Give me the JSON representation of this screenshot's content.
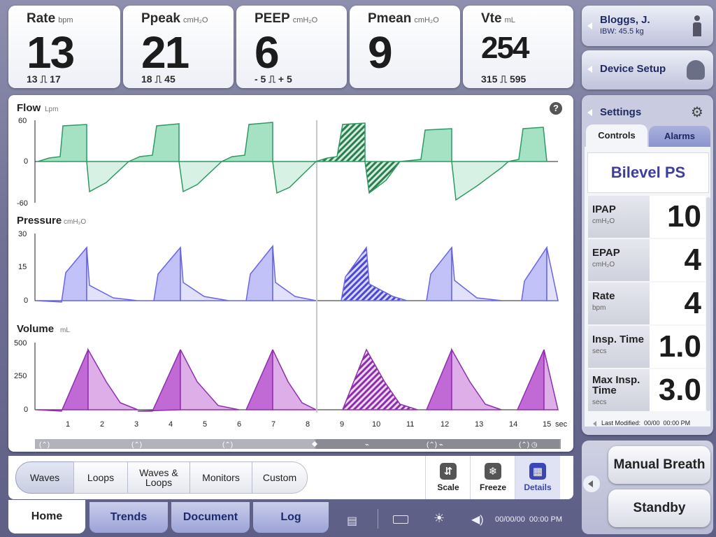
{
  "metrics": [
    {
      "label": "Rate",
      "unit": "bpm",
      "value": "13",
      "range": "13 ⎍ 17"
    },
    {
      "label": "Ppeak",
      "unit": "cmH₂O",
      "value": "21",
      "range": "18 ⎍ 45"
    },
    {
      "label": "PEEP",
      "unit": "cmH₂O",
      "value": "6",
      "range": "- 5 ⎍ + 5"
    },
    {
      "label": "Pmean",
      "unit": "cmH₂O",
      "value": "9",
      "range": ""
    },
    {
      "label": "Vte",
      "unit": "mL",
      "value": "254",
      "range": "315 ⎍ 595"
    }
  ],
  "waves": {
    "help_icon": "?",
    "flow": {
      "label": "Flow",
      "unit": "Lpm",
      "ticks": [
        "60",
        "0",
        "-60"
      ]
    },
    "pressure": {
      "label": "Pressure",
      "unit": "cmH₂O",
      "ticks": [
        "30",
        "15",
        "0"
      ]
    },
    "volume": {
      "label": "Volume",
      "unit": "mL",
      "ticks": [
        "500",
        "250",
        "0"
      ]
    },
    "x_ticks": [
      "1",
      "2",
      "3",
      "4",
      "5",
      "6",
      "7",
      "8",
      "9",
      "10",
      "11",
      "12",
      "13",
      "14",
      "15"
    ],
    "x_unit": "sec",
    "colors": {
      "flow": "#3fb878",
      "pressure": "#7b78ef",
      "volume": "#b04bc8"
    }
  },
  "view_tabs": {
    "waves": "Waves",
    "loops": "Loops",
    "waves_loops": "Waves & Loops",
    "monitors": "Monitors",
    "custom": "Custom"
  },
  "tools": {
    "scale": "Scale",
    "freeze": "Freeze",
    "details": "Details"
  },
  "nav": {
    "home": "Home",
    "trends": "Trends",
    "document": "Document",
    "log": "Log"
  },
  "status": {
    "datetime": "00/00/00  00:00 PM"
  },
  "patient": {
    "name": "Bloggs, J.",
    "ibw": "IBW: 45.5 kg"
  },
  "device_setup": "Device Setup",
  "settings": {
    "title": "Settings",
    "tab_controls": "Controls",
    "tab_alarms": "Alarms",
    "mode": "Bilevel PS",
    "rows": [
      {
        "name": "IPAP",
        "unit": "cmH₂O",
        "value": "10"
      },
      {
        "name": "EPAP",
        "unit": "cmH₂O",
        "value": "4"
      },
      {
        "name": "Rate",
        "unit": "bpm",
        "value": "4"
      },
      {
        "name": "Insp. Time",
        "unit": "secs",
        "value": "1.0"
      },
      {
        "name": "Max Insp. Time",
        "unit": "secs",
        "value": "3.0"
      }
    ],
    "last_modified": "Last Modified:  00/00  00:00 PM"
  },
  "actions": {
    "manual_breath": "Manual Breath",
    "standby": "Standby"
  }
}
